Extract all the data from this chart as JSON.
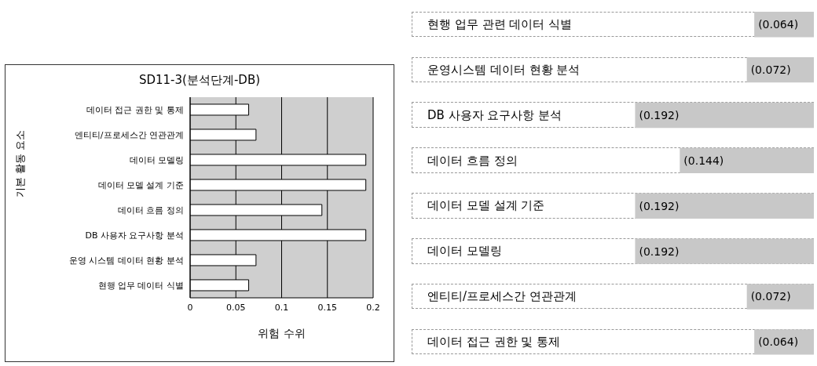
{
  "chart_data": [
    {
      "type": "bar",
      "orientation": "horizontal",
      "title": "SD11-3(분석단계-DB)",
      "xlabel": "위험 수위",
      "ylabel": "기본 활동 요소",
      "categories": [
        "데이터 접근 권한 및 통제",
        "엔티티/프로세스간 연관관계",
        "데이터 모델링",
        "데이터 모델 설계 기준",
        "데이터 흐름 정의",
        "DB 사용자 요구사항 분석",
        "운영 시스템 데이터 현황 분석",
        "현행 업무 데이터 식별"
      ],
      "values": [
        0.064,
        0.072,
        0.192,
        0.192,
        0.144,
        0.192,
        0.072,
        0.064
      ],
      "color": "#ffffff",
      "xlim": [
        0,
        0.2
      ],
      "xticks": [
        0,
        {
          "value": 0.05,
          "label": "0.05"
        },
        {
          "value": 0.1,
          "label": "0.1"
        },
        0.15,
        0.2
      ],
      "grid": "x"
    },
    {
      "type": "bar",
      "orientation": "horizontal",
      "categories": [
        "현행 업무 관련 데이터 식별",
        "운영시스템 데이터 현황 분석",
        "DB 사용자 요구사항 분석",
        "데이터 흐름 정의",
        "데이터 모델 설계 기준",
        "데이터 모델링",
        "엔티티/프로세스간 연관관계",
        "데이터 접근 권한 및 통제"
      ],
      "values": [
        0.064,
        0.072,
        0.192,
        0.144,
        0.192,
        0.192,
        0.072,
        0.064
      ],
      "color": "#c8c8c8",
      "value_labels": [
        "(0.064)",
        "(0.072)",
        "(0.192)",
        "(0.144)",
        "(0.192)",
        "(0.192)",
        "(0.072)",
        "(0.064)"
      ]
    }
  ]
}
